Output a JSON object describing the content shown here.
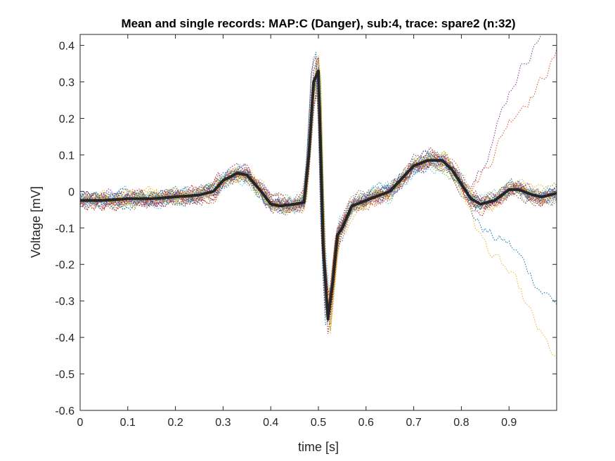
{
  "chart_data": {
    "type": "line",
    "title": "Mean and single records: MAP:C (Danger), sub:4, trace: spare2 (n:32)",
    "xlabel": "time [s]",
    "ylabel": "Voltage [mV]",
    "xlim": [
      0,
      1
    ],
    "ylim": [
      -0.6,
      0.43
    ],
    "xticks": [
      0,
      0.1,
      0.2,
      0.3,
      0.4,
      0.5,
      0.6,
      0.7,
      0.8,
      0.9
    ],
    "xtick_labels": [
      "0",
      "0.1",
      "0.2",
      "0.3",
      "0.4",
      "0.5",
      "0.6",
      "0.7",
      "0.8",
      "0.9"
    ],
    "yticks": [
      0.4,
      0.3,
      0.2,
      0.1,
      0,
      -0.1,
      -0.2,
      -0.3,
      -0.4,
      -0.5,
      -0.6
    ],
    "ytick_labels": [
      "0.4",
      "0.3",
      "0.2",
      "0.1",
      "0",
      "-0.1",
      "-0.2",
      "-0.3",
      "-0.4",
      "-0.5",
      "-0.6"
    ],
    "grid": false,
    "legend": "none",
    "series_colors": [
      "#0072BD",
      "#D95319",
      "#EDB120",
      "#7E2F8E",
      "#77AC30",
      "#4DBEEE",
      "#A2142F"
    ],
    "mean_series": {
      "color": "#262626",
      "x": [
        0,
        0.05,
        0.1,
        0.15,
        0.2,
        0.25,
        0.28,
        0.3,
        0.33,
        0.35,
        0.38,
        0.4,
        0.42,
        0.45,
        0.47,
        0.48,
        0.49,
        0.5,
        0.505,
        0.51,
        0.52,
        0.53,
        0.54,
        0.55,
        0.57,
        0.6,
        0.65,
        0.7,
        0.73,
        0.76,
        0.78,
        0.8,
        0.82,
        0.84,
        0.87,
        0.9,
        0.92,
        0.95,
        0.97,
        1.0
      ],
      "y": [
        -0.025,
        -0.025,
        -0.02,
        -0.02,
        -0.015,
        -0.01,
        0.0,
        0.03,
        0.05,
        0.045,
        0.0,
        -0.035,
        -0.04,
        -0.035,
        -0.03,
        0.1,
        0.3,
        0.33,
        0.1,
        -0.15,
        -0.35,
        -0.25,
        -0.12,
        -0.1,
        -0.04,
        -0.025,
        0.0,
        0.07,
        0.085,
        0.085,
        0.06,
        0.02,
        -0.02,
        -0.035,
        -0.025,
        0.005,
        0.005,
        -0.01,
        -0.015,
        -0.005
      ]
    }
  }
}
